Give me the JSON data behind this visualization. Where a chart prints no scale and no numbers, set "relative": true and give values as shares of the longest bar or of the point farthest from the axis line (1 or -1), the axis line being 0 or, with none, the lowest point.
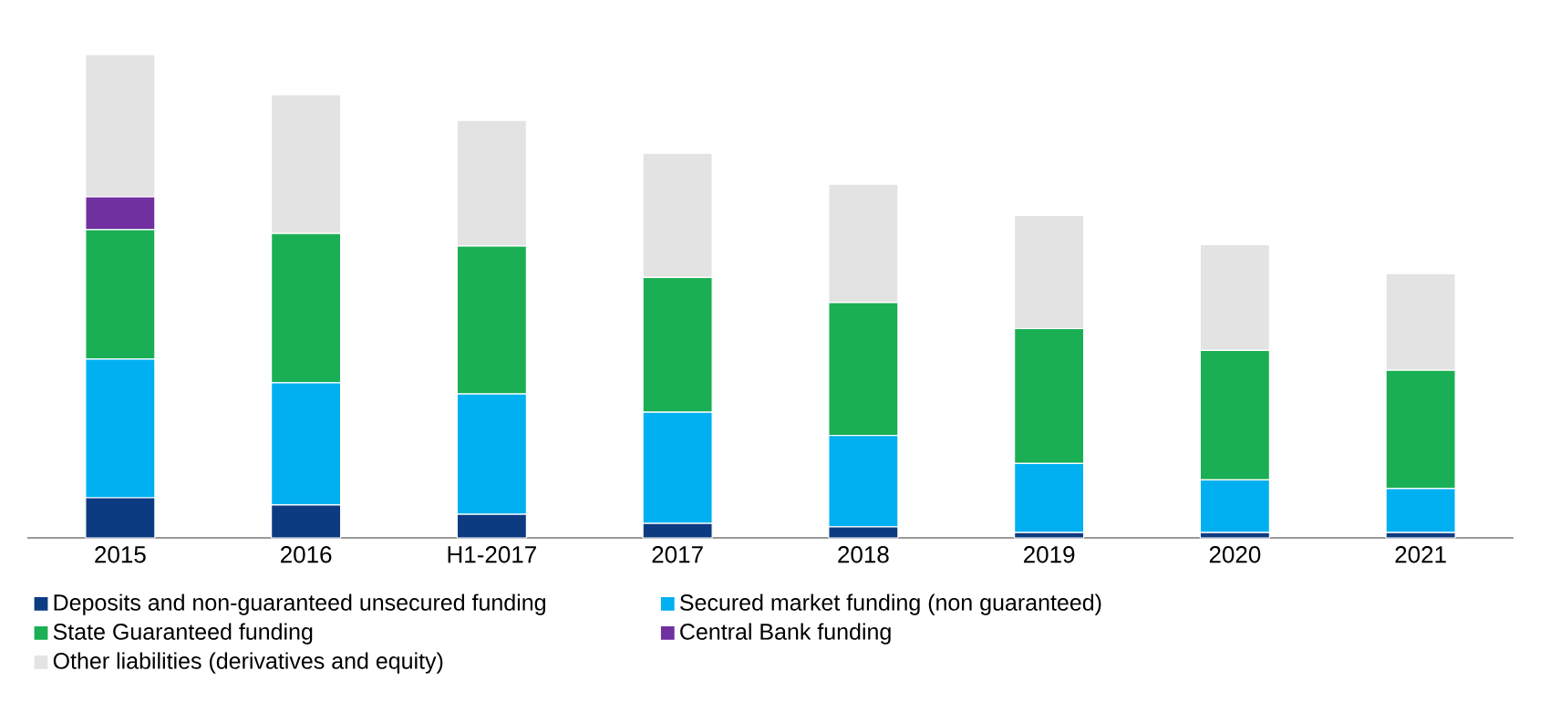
{
  "chart_data": {
    "type": "bar",
    "stacked": true,
    "relative": true,
    "legend": "bottom",
    "categories": [
      "2015",
      "2016",
      "H1-2017",
      "2017",
      "2018",
      "2019",
      "2020",
      "2021"
    ],
    "series": [
      {
        "name": "Deposits and non-guaranteed unsecured funding",
        "color": "#0d3b82",
        "values": [
          0.083,
          0.068,
          0.049,
          0.03,
          0.023,
          0.011,
          0.011,
          0.011
        ]
      },
      {
        "name": "Secured market funding (non guaranteed)",
        "color": "#00b0f0",
        "values": [
          0.287,
          0.253,
          0.249,
          0.23,
          0.189,
          0.143,
          0.109,
          0.091
        ]
      },
      {
        "name": "State Guaranteed funding",
        "color": "#1aaf54",
        "values": [
          0.268,
          0.309,
          0.306,
          0.279,
          0.275,
          0.279,
          0.268,
          0.245
        ]
      },
      {
        "name": "Central Bank funding",
        "color": "#7030a0",
        "values": [
          0.068,
          0,
          0,
          0,
          0,
          0,
          0,
          0
        ]
      },
      {
        "name": "Other liabilities (derivatives and equity)",
        "color": "#e3e3e3",
        "values": [
          0.294,
          0.287,
          0.26,
          0.257,
          0.245,
          0.234,
          0.219,
          0.2
        ]
      }
    ]
  }
}
